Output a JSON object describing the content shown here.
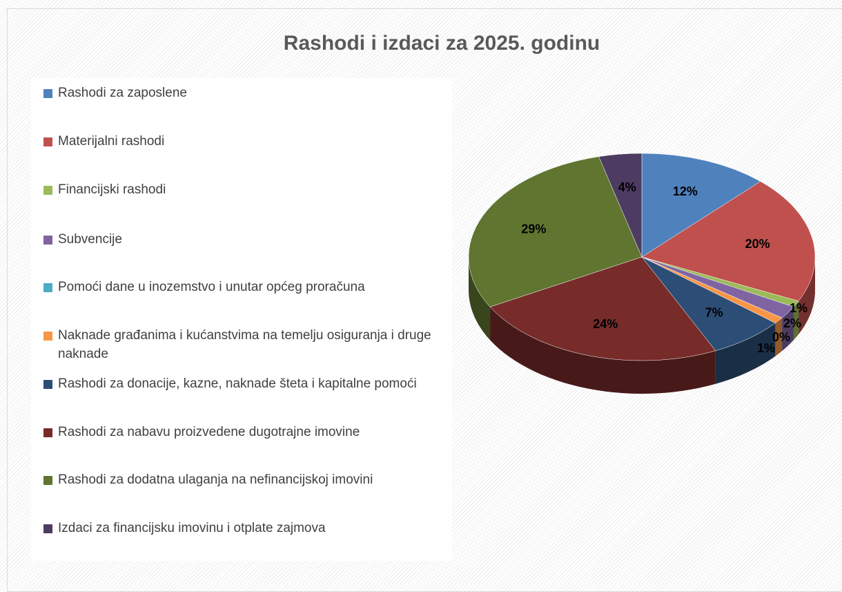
{
  "chart_data": {
    "type": "pie",
    "title": "Rashodi i izdaci za 2025. godinu",
    "categories": [
      "Rashodi za zaposlene",
      "Materijalni rashodi",
      "Financijski rashodi",
      "Subvencije",
      "Pomoći dane u inozemstvo i unutar općeg proračuna",
      "Naknade građanima i kućanstvima na temelju osiguranja i druge naknade",
      "Rashodi za donacije, kazne, naknade šteta i kapitalne pomoći",
      "Rashodi za nabavu proizvedene dugotrajne imovine",
      "Rashodi za dodatna ulaganja na nefinancijskoj imovini",
      "Izdaci za financijsku imovinu i otplate zajmova"
    ],
    "values": [
      12,
      20,
      1,
      2,
      0,
      1,
      7,
      24,
      29,
      4
    ],
    "value_labels": [
      "12%",
      "20%",
      "1%",
      "2%",
      "0%",
      "1%",
      "7%",
      "24%",
      "29%",
      "4%"
    ],
    "colors": [
      "#4f81bd",
      "#c0504d",
      "#9bbb59",
      "#8064a2",
      "#4bacc6",
      "#f79646",
      "#2c4d75",
      "#772c2a",
      "#5f7530",
      "#4d3b62"
    ],
    "legend": "left"
  }
}
